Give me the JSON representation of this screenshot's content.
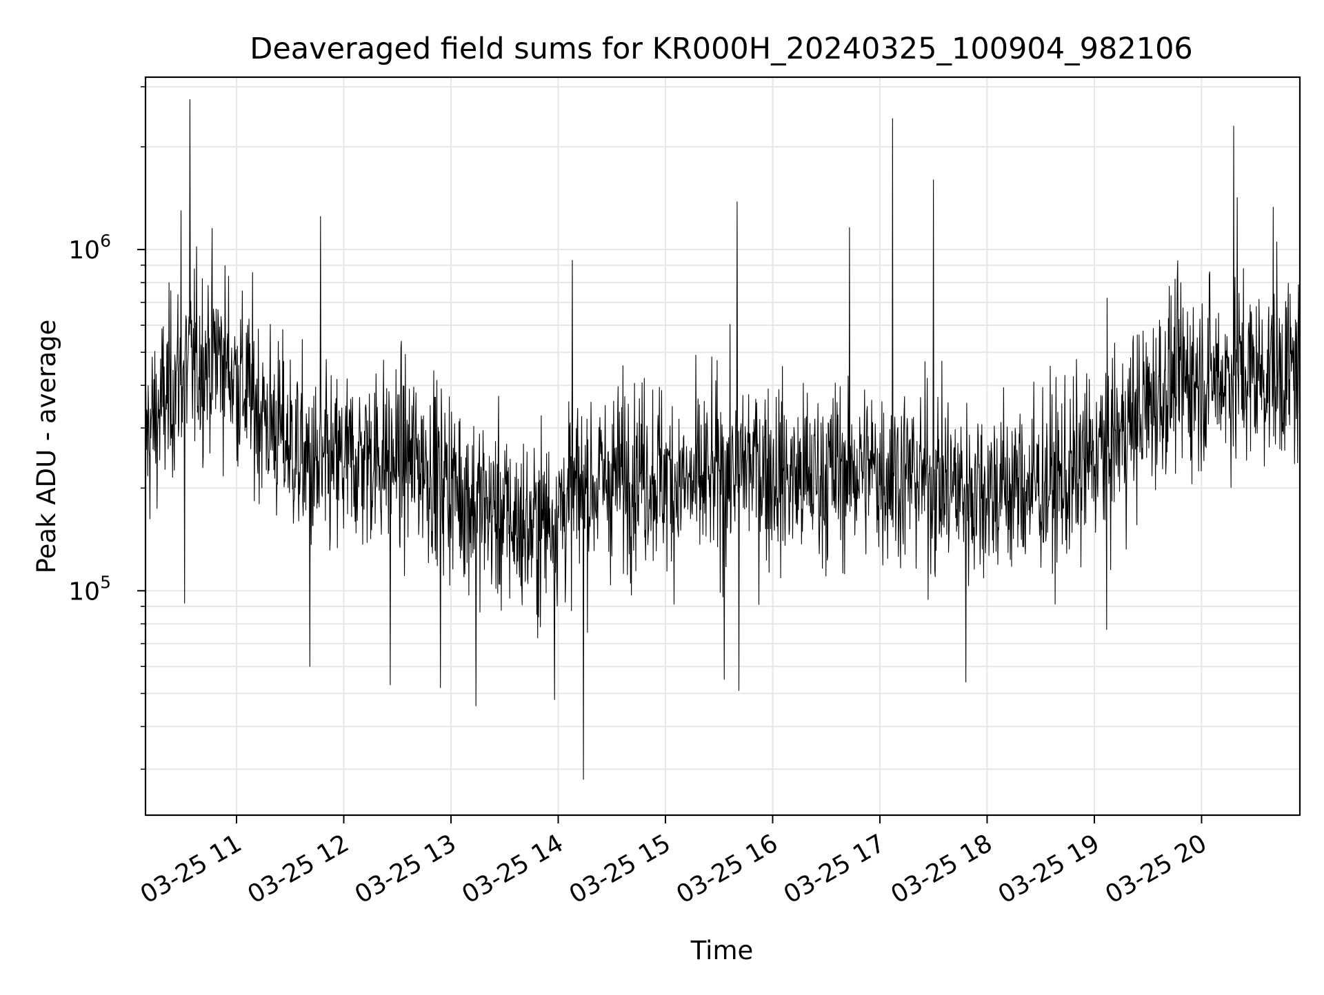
{
  "chart_data": {
    "type": "line",
    "title": "Deaveraged field sums for KR000H_20240325_100904_982106",
    "xlabel": "Time",
    "ylabel": "Peak ADU - average",
    "yscale": "log",
    "ylim": [
      22000,
      3200000
    ],
    "xlim": [
      "2024-03-25 10:09:04",
      "2024-03-25 20:55:00"
    ],
    "grid": true,
    "x_ticks": [
      {
        "t": "2024-03-25 11:00",
        "label": "03-25 11"
      },
      {
        "t": "2024-03-25 12:00",
        "label": "03-25 12"
      },
      {
        "t": "2024-03-25 13:00",
        "label": "03-25 13"
      },
      {
        "t": "2024-03-25 14:00",
        "label": "03-25 14"
      },
      {
        "t": "2024-03-25 15:00",
        "label": "03-25 15"
      },
      {
        "t": "2024-03-25 16:00",
        "label": "03-25 16"
      },
      {
        "t": "2024-03-25 17:00",
        "label": "03-25 17"
      },
      {
        "t": "2024-03-25 18:00",
        "label": "03-25 18"
      },
      {
        "t": "2024-03-25 19:00",
        "label": "03-25 19"
      },
      {
        "t": "2024-03-25 20:00",
        "label": "03-25 20"
      }
    ],
    "y_ticks": [
      {
        "value": 100000,
        "base": "10",
        "exp": "5"
      },
      {
        "value": 1000000,
        "base": "10",
        "exp": "6"
      }
    ],
    "series_color": "#000000",
    "grid_color": "#e6e6e6",
    "typical_level": [
      {
        "t": "2024-03-25 10:09",
        "y": 280000
      },
      {
        "t": "2024-03-25 10:30",
        "y": 450000
      },
      {
        "t": "2024-03-25 10:50",
        "y": 500000
      },
      {
        "t": "2024-03-25 11:15",
        "y": 330000
      },
      {
        "t": "2024-03-25 11:45",
        "y": 220000
      },
      {
        "t": "2024-03-25 12:15",
        "y": 250000
      },
      {
        "t": "2024-03-25 12:45",
        "y": 240000
      },
      {
        "t": "2024-03-25 13:15",
        "y": 180000
      },
      {
        "t": "2024-03-25 13:45",
        "y": 150000
      },
      {
        "t": "2024-03-25 14:15",
        "y": 200000
      },
      {
        "t": "2024-03-25 14:45",
        "y": 230000
      },
      {
        "t": "2024-03-25 15:15",
        "y": 200000
      },
      {
        "t": "2024-03-25 15:45",
        "y": 240000
      },
      {
        "t": "2024-03-25 16:15",
        "y": 210000
      },
      {
        "t": "2024-03-25 16:45",
        "y": 230000
      },
      {
        "t": "2024-03-25 17:15",
        "y": 220000
      },
      {
        "t": "2024-03-25 17:45",
        "y": 200000
      },
      {
        "t": "2024-03-25 18:15",
        "y": 200000
      },
      {
        "t": "2024-03-25 18:45",
        "y": 210000
      },
      {
        "t": "2024-03-25 19:15",
        "y": 290000
      },
      {
        "t": "2024-03-25 19:45",
        "y": 420000
      },
      {
        "t": "2024-03-25 20:15",
        "y": 430000
      },
      {
        "t": "2024-03-25 20:55",
        "y": 440000
      }
    ],
    "spikes": [
      {
        "t": "2024-03-25 10:34",
        "y": 2750000
      },
      {
        "t": "2024-03-25 10:29",
        "y": 1300000
      },
      {
        "t": "2024-03-25 11:47",
        "y": 1250000
      },
      {
        "t": "2024-03-25 14:08",
        "y": 930000
      },
      {
        "t": "2024-03-25 15:40",
        "y": 1380000
      },
      {
        "t": "2024-03-25 16:43",
        "y": 1160000
      },
      {
        "t": "2024-03-25 17:07",
        "y": 2420000
      },
      {
        "t": "2024-03-25 17:30",
        "y": 1600000
      },
      {
        "t": "2024-03-25 20:18",
        "y": 2300000
      },
      {
        "t": "2024-03-25 20:20",
        "y": 1420000
      },
      {
        "t": "2024-03-25 20:40",
        "y": 1330000
      }
    ],
    "dips": [
      {
        "t": "2024-03-25 10:31",
        "y": 92000
      },
      {
        "t": "2024-03-25 11:41",
        "y": 60000
      },
      {
        "t": "2024-03-25 12:26",
        "y": 53000
      },
      {
        "t": "2024-03-25 12:54",
        "y": 52000
      },
      {
        "t": "2024-03-25 13:14",
        "y": 46000
      },
      {
        "t": "2024-03-25 13:58",
        "y": 48000
      },
      {
        "t": "2024-03-25 14:14",
        "y": 28000
      },
      {
        "t": "2024-03-25 15:33",
        "y": 55000
      },
      {
        "t": "2024-03-25 15:41",
        "y": 51000
      },
      {
        "t": "2024-03-25 17:48",
        "y": 54000
      },
      {
        "t": "2024-03-25 19:07",
        "y": 77000
      }
    ]
  }
}
